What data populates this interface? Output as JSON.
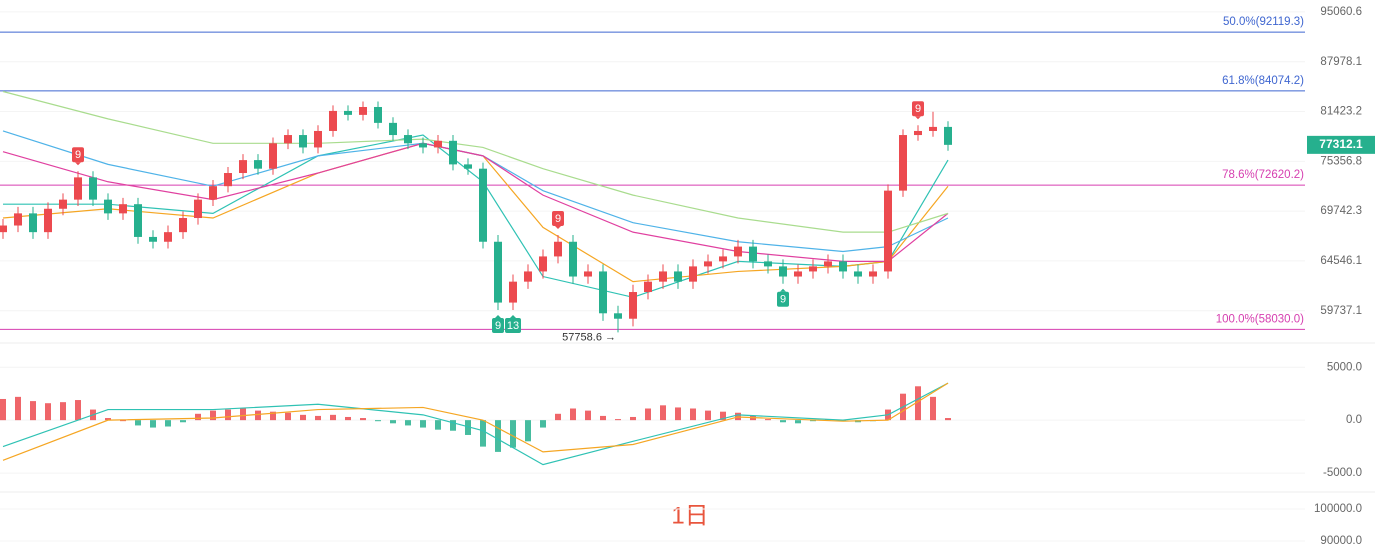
{
  "chart_data": [
    {
      "type": "candlestick",
      "log_scale": true,
      "ylim": [
        57080,
        96840
      ],
      "yticks": [
        95060.6,
        87978.1,
        81423.2,
        75356.8,
        69742.3,
        64546.1,
        59737.1
      ],
      "up_color": "#ec4a4f",
      "down_color": "#26b08e",
      "open": [
        67500,
        68200,
        69500,
        67500,
        70000,
        71000,
        73500,
        71000,
        69500,
        70500,
        67000,
        66500,
        67500,
        69000,
        71000,
        72500,
        74000,
        75500,
        74500,
        77500,
        78500,
        77000,
        79000,
        81500,
        81000,
        82000,
        80000,
        78500,
        77500,
        77000,
        77800,
        75000,
        74500,
        66500,
        60500,
        62500,
        63500,
        65000,
        66500,
        63000,
        63500,
        59500,
        59000,
        61500,
        62500,
        63500,
        62500,
        64000,
        64500,
        65000,
        66000,
        64500,
        64000,
        63000,
        63500,
        64000,
        64500,
        63500,
        63000,
        63500,
        72000,
        78500,
        79000,
        79500
      ],
      "high": [
        68900,
        70200,
        70200,
        70700,
        71700,
        74200,
        74200,
        71700,
        71200,
        71200,
        67700,
        68200,
        69700,
        71700,
        73200,
        74700,
        76200,
        76200,
        78200,
        79200,
        79200,
        79700,
        82200,
        82200,
        82700,
        82700,
        80700,
        79200,
        78200,
        78500,
        78500,
        75700,
        75200,
        67200,
        63200,
        64200,
        65700,
        67200,
        67200,
        64200,
        64200,
        60200,
        62200,
        63200,
        64200,
        64200,
        64700,
        65200,
        65700,
        66700,
        66700,
        65200,
        64700,
        64200,
        64700,
        65200,
        65200,
        64200,
        64200,
        72700,
        79200,
        79700,
        81400,
        80200
      ],
      "low": [
        66800,
        67500,
        66800,
        66800,
        69300,
        70300,
        70300,
        68800,
        68800,
        66300,
        65800,
        65800,
        66800,
        68300,
        70300,
        71800,
        73300,
        73800,
        73800,
        76800,
        76300,
        76300,
        78300,
        80300,
        80300,
        79300,
        77800,
        76800,
        76300,
        76300,
        74300,
        73800,
        65800,
        59800,
        59800,
        61800,
        62800,
        64300,
        62300,
        62300,
        58800,
        57758.6,
        58300,
        60800,
        61800,
        61800,
        61800,
        63300,
        63800,
        64300,
        63800,
        63300,
        62300,
        62300,
        62800,
        63300,
        62800,
        62300,
        62300,
        62800,
        71300,
        77800,
        78300,
        76600
      ],
      "close": [
        68200,
        69500,
        67500,
        70000,
        71000,
        73500,
        71000,
        69500,
        70500,
        67000,
        66500,
        67500,
        69000,
        71000,
        72500,
        74000,
        75500,
        74500,
        77500,
        78500,
        77000,
        79000,
        81500,
        81000,
        82000,
        80000,
        78500,
        77500,
        77000,
        77800,
        75000,
        74500,
        66500,
        60500,
        62500,
        63500,
        65000,
        66500,
        63000,
        63500,
        59500,
        59000,
        61500,
        62500,
        63500,
        62500,
        64000,
        64500,
        65000,
        66000,
        64500,
        64000,
        63000,
        63500,
        64000,
        64500,
        63500,
        63000,
        63500,
        72000,
        78500,
        79000,
        79500,
        77312.1
      ],
      "series": [
        {
          "color": "#2fc2b4",
          "x": [
            0,
            7,
            14,
            21,
            28,
            32,
            36,
            42,
            49,
            56,
            59,
            63
          ],
          "values": [
            70500,
            70500,
            69500,
            76000,
            78500,
            73000,
            63000,
            61000,
            64500,
            64000,
            64500,
            75500
          ]
        },
        {
          "color": "#f5a623",
          "x": [
            0,
            7,
            14,
            21,
            28,
            32,
            36,
            42,
            49,
            56,
            59,
            63
          ],
          "values": [
            69000,
            70000,
            69000,
            74000,
            77500,
            76000,
            68000,
            62500,
            63500,
            64000,
            64500,
            72500
          ]
        },
        {
          "color": "#4fb3e8",
          "x": [
            0,
            7,
            14,
            21,
            28,
            32,
            36,
            42,
            49,
            56,
            59,
            63
          ],
          "values": [
            79000,
            75000,
            72500,
            76000,
            77500,
            76000,
            72000,
            68500,
            66500,
            65500,
            66000,
            69000
          ]
        },
        {
          "color": "#e040a0",
          "x": [
            0,
            7,
            14,
            21,
            28,
            32,
            36,
            42,
            49,
            56,
            59,
            63
          ],
          "values": [
            76500,
            73000,
            71000,
            74000,
            77500,
            76000,
            71500,
            67500,
            65500,
            64500,
            64500,
            69500
          ]
        },
        {
          "color": "#a9dc8e",
          "x": [
            0,
            7,
            14,
            21,
            28,
            32,
            36,
            42,
            49,
            56,
            59,
            63
          ],
          "values": [
            84000,
            80500,
            77500,
            77500,
            78000,
            77000,
            74500,
            71500,
            69000,
            67500,
            67500,
            69500
          ]
        }
      ],
      "levels": [
        {
          "value": 92119.3,
          "label": "50.0%(92119.3)",
          "color": "#3f66d0"
        },
        {
          "value": 84074.2,
          "label": "61.8%(84074.2)",
          "color": "#3f66d0"
        },
        {
          "value": 72620.2,
          "label": "78.6%(72620.2)",
          "color": "#d63fb0"
        },
        {
          "value": 58030.0,
          "label": "100.0%(58030.0)",
          "color": "#d63fb0"
        }
      ],
      "last_price": 77312.1,
      "low_annotation": {
        "index": 41,
        "label": "57758.6 →"
      },
      "markers": [
        {
          "index": 5,
          "label": "9",
          "side": "top"
        },
        {
          "index": 37,
          "label": "9",
          "side": "top"
        },
        {
          "index": 61,
          "label": "9",
          "side": "top"
        },
        {
          "index": 33,
          "label": "9",
          "side": "bottom"
        },
        {
          "index": 34,
          "label": "13",
          "side": "bottom"
        },
        {
          "index": 52,
          "label": "9",
          "side": "bottom"
        }
      ]
    },
    {
      "type": "macd",
      "ylim": [
        -6600,
        7100
      ],
      "yticks": [
        {
          "value": 5000,
          "label": "5000.0"
        },
        {
          "value": 0,
          "label": "0.0"
        },
        {
          "value": -5000,
          "label": "-5000.0"
        }
      ],
      "histogram": [
        2000,
        2200,
        1800,
        1600,
        1700,
        1900,
        1000,
        200,
        0,
        -500,
        -700,
        -600,
        -200,
        600,
        900,
        1000,
        1100,
        900,
        800,
        700,
        500,
        400,
        500,
        300,
        200,
        -100,
        -300,
        -500,
        -700,
        -900,
        -1000,
        -1400,
        -2500,
        -3000,
        -2600,
        -2000,
        -700,
        600,
        1100,
        900,
        400,
        100,
        300,
        1100,
        1400,
        1200,
        1100,
        900,
        800,
        700,
        400,
        100,
        -200,
        -300,
        -100,
        100,
        -100,
        -200,
        -100,
        1000,
        2500,
        3200,
        2200,
        200
      ],
      "series": [
        {
          "color": "#2fc2b4",
          "x": [
            0,
            7,
            14,
            21,
            28,
            32,
            36,
            42,
            49,
            56,
            59,
            63
          ],
          "values": [
            -2500,
            1000,
            1000,
            1500,
            500,
            -1000,
            -4200,
            -2000,
            500,
            0,
            500,
            3500
          ]
        },
        {
          "color": "#f5a623",
          "x": [
            0,
            7,
            14,
            21,
            28,
            32,
            36,
            42,
            49,
            56,
            59,
            63
          ],
          "values": [
            -3800,
            0,
            200,
            1000,
            1200,
            0,
            -3000,
            -2300,
            300,
            -100,
            0,
            3500
          ]
        }
      ]
    },
    {
      "type": "volume",
      "ylim": [
        88750,
        104375
      ],
      "yticks": [
        {
          "value": 100000,
          "label": "100000.0"
        },
        {
          "value": 90000,
          "label": "90000.0"
        }
      ]
    }
  ],
  "watermark": "1日"
}
